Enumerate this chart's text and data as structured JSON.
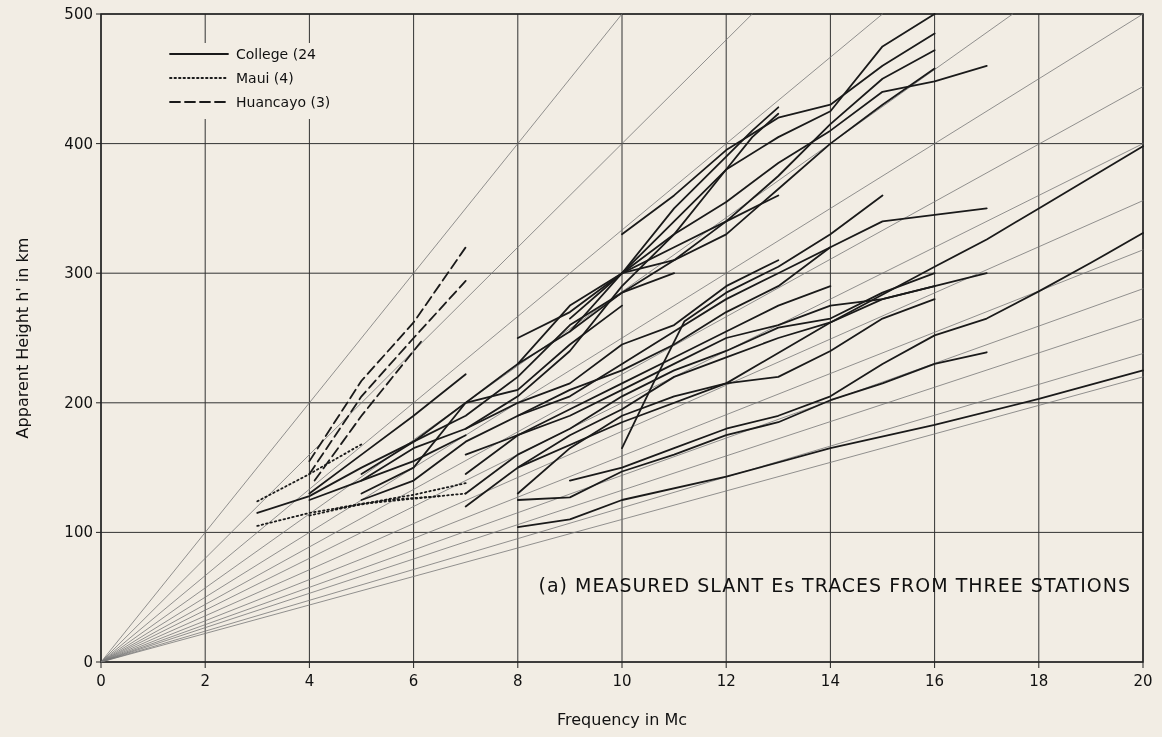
{
  "chart_data": {
    "type": "line",
    "xlabel": "Frequency in Mc",
    "ylabel": "Apparent Height h' in km",
    "annotations": [
      "(a)  MEASURED SLANT Es TRACES FROM THREE STATIONS"
    ],
    "xlim": [
      0,
      20
    ],
    "ylim": [
      0,
      500
    ],
    "xticks": [
      0,
      2,
      4,
      6,
      8,
      10,
      12,
      14,
      16,
      18,
      20
    ],
    "yticks": [
      0,
      100,
      200,
      300,
      400,
      500
    ],
    "grid": true,
    "legend": "top left",
    "series": [
      {
        "color": "#777777",
        "line_style": "solid",
        "x": [
          0,
          10
        ],
        "values": [
          0,
          500
        ]
      },
      {
        "color": "#777777",
        "line_style": "solid",
        "x": [
          0,
          12.5
        ],
        "values": [
          0,
          500
        ]
      },
      {
        "color": "#777777",
        "line_style": "solid",
        "x": [
          0,
          15
        ],
        "values": [
          0,
          500
        ]
      },
      {
        "color": "#777777",
        "line_style": "solid",
        "x": [
          0,
          17.5
        ],
        "values": [
          0,
          500
        ]
      },
      {
        "color": "#777777",
        "line_style": "solid",
        "x": [
          0,
          20
        ],
        "values": [
          0,
          500
        ]
      },
      {
        "color": "#777777",
        "line_style": "solid",
        "x": [
          0,
          20
        ],
        "values": [
          0,
          444
        ]
      },
      {
        "color": "#777777",
        "line_style": "solid",
        "x": [
          0,
          20
        ],
        "values": [
          0,
          400
        ]
      },
      {
        "color": "#777777",
        "line_style": "solid",
        "x": [
          0,
          20
        ],
        "values": [
          0,
          356
        ]
      },
      {
        "color": "#777777",
        "line_style": "solid",
        "x": [
          0,
          20
        ],
        "values": [
          0,
          318
        ]
      },
      {
        "color": "#777777",
        "line_style": "solid",
        "x": [
          0,
          20
        ],
        "values": [
          0,
          288
        ]
      },
      {
        "color": "#777777",
        "line_style": "solid",
        "x": [
          0,
          20
        ],
        "values": [
          0,
          265
        ]
      },
      {
        "color": "#777777",
        "line_style": "solid",
        "x": [
          0,
          20
        ],
        "values": [
          0,
          238
        ]
      },
      {
        "color": "#777777",
        "line_style": "solid",
        "x": [
          0,
          20
        ],
        "values": [
          0,
          220
        ]
      },
      {
        "name": "College (24",
        "color": "#1a1a1a",
        "line_style": "solid",
        "x": [
          8,
          9,
          10,
          12,
          14,
          16,
          18,
          20
        ],
        "values": [
          104,
          110,
          125,
          143,
          165,
          183,
          203,
          225
        ]
      },
      {
        "color": "#1a1a1a",
        "line_style": "solid",
        "x": [
          8,
          9,
          10,
          11,
          12,
          13,
          14,
          15,
          16,
          17
        ],
        "values": [
          125,
          127,
          147,
          160,
          175,
          185,
          202,
          215,
          230,
          239
        ]
      },
      {
        "color": "#1a1a1a",
        "line_style": "solid",
        "x": [
          9,
          10,
          11,
          12,
          13,
          14,
          15,
          16,
          17,
          18,
          19,
          20
        ],
        "values": [
          140,
          150,
          165,
          180,
          190,
          205,
          230,
          252,
          265,
          286,
          308,
          331
        ]
      },
      {
        "color": "#1a1a1a",
        "line_style": "solid",
        "x": [
          10,
          10.6,
          11.2,
          12,
          13,
          14,
          15
        ],
        "values": [
          165,
          215,
          263,
          285,
          305,
          330,
          360
        ]
      },
      {
        "color": "#1a1a1a",
        "line_style": "solid",
        "x": [
          8,
          10,
          12,
          14,
          16,
          17,
          18,
          20
        ],
        "values": [
          150,
          185,
          215,
          262,
          305,
          326,
          350,
          398
        ]
      },
      {
        "color": "#1a1a1a",
        "line_style": "solid",
        "x": [
          8,
          9,
          10,
          11,
          12,
          13,
          14,
          15,
          16
        ],
        "values": [
          130,
          165,
          190,
          205,
          215,
          220,
          240,
          265,
          280
        ]
      },
      {
        "color": "#1a1a1a",
        "line_style": "solid",
        "x": [
          7,
          8,
          9,
          10,
          11,
          12,
          13,
          14,
          15,
          16
        ],
        "values": [
          120,
          150,
          175,
          195,
          220,
          235,
          250,
          262,
          280,
          290
        ]
      },
      {
        "color": "#1a1a1a",
        "line_style": "solid",
        "x": [
          7,
          8,
          9,
          10,
          11,
          12,
          13,
          14,
          15,
          16
        ],
        "values": [
          130,
          160,
          180,
          205,
          225,
          240,
          258,
          265,
          285,
          300
        ]
      },
      {
        "color": "#1a1a1a",
        "line_style": "solid",
        "x": [
          7,
          8,
          9,
          10,
          11,
          12,
          13,
          14,
          15,
          16,
          17
        ],
        "values": [
          145,
          175,
          190,
          210,
          230,
          250,
          260,
          275,
          280,
          290,
          300
        ]
      },
      {
        "color": "#1a1a1a",
        "line_style": "solid",
        "x": [
          8,
          9,
          10,
          11,
          12,
          13,
          14,
          15,
          16,
          17
        ],
        "values": [
          190,
          205,
          230,
          255,
          280,
          300,
          320,
          340,
          345,
          350
        ]
      },
      {
        "color": "#1a1a1a",
        "line_style": "solid",
        "x": [
          9,
          10,
          11,
          12,
          13,
          14,
          15,
          16,
          17
        ],
        "values": [
          255,
          300,
          330,
          355,
          385,
          410,
          440,
          448,
          460
        ]
      },
      {
        "color": "#1a1a1a",
        "line_style": "solid",
        "x": [
          10,
          11,
          12,
          13,
          14,
          15,
          16
        ],
        "values": [
          300,
          340,
          380,
          405,
          425,
          475,
          500
        ]
      },
      {
        "color": "#1a1a1a",
        "line_style": "solid",
        "x": [
          10,
          11,
          12,
          13,
          14,
          15,
          16
        ],
        "values": [
          330,
          360,
          395,
          420,
          430,
          460,
          485
        ]
      },
      {
        "color": "#1a1a1a",
        "line_style": "solid",
        "x": [
          9,
          10,
          11,
          12,
          13,
          14,
          15,
          16
        ],
        "values": [
          265,
          300,
          320,
          340,
          375,
          415,
          450,
          472
        ]
      },
      {
        "color": "#1a1a1a",
        "line_style": "solid",
        "x": [
          8,
          9,
          10,
          11,
          12,
          13,
          14,
          15,
          16
        ],
        "values": [
          230,
          255,
          285,
          310,
          330,
          365,
          400,
          430,
          458
        ]
      },
      {
        "color": "#1a1a1a",
        "line_style": "solid",
        "x": [
          8,
          9,
          10,
          11,
          12,
          12.5,
          13
        ],
        "values": [
          250,
          270,
          300,
          350,
          390,
          410,
          428
        ]
      },
      {
        "color": "#1a1a1a",
        "line_style": "solid",
        "x": [
          7,
          8,
          9,
          10,
          11,
          12,
          12.5,
          13
        ],
        "values": [
          180,
          205,
          240,
          290,
          330,
          380,
          405,
          423
        ]
      },
      {
        "color": "#1a1a1a",
        "line_style": "solid",
        "x": [
          5,
          6,
          7,
          8,
          9,
          10,
          11,
          12,
          13
        ],
        "values": [
          130,
          150,
          200,
          230,
          275,
          300,
          310,
          340,
          360
        ]
      },
      {
        "color": "#1a1a1a",
        "line_style": "solid",
        "x": [
          3,
          4,
          5,
          6,
          7,
          8,
          9,
          10
        ],
        "values": [
          115,
          128,
          150,
          170,
          200,
          210,
          245,
          275
        ]
      },
      {
        "color": "#1a1a1a",
        "line_style": "solid",
        "x": [
          4,
          5,
          6,
          7
        ],
        "values": [
          130,
          160,
          190,
          222
        ]
      },
      {
        "color": "#1a1a1a",
        "line_style": "solid",
        "x": [
          5,
          6,
          7,
          8,
          9,
          10,
          11
        ],
        "values": [
          145,
          170,
          190,
          220,
          260,
          285,
          300
        ]
      },
      {
        "color": "#1a1a1a",
        "line_style": "solid",
        "x": [
          5,
          6,
          7,
          8,
          9,
          10,
          11,
          12,
          13
        ],
        "values": [
          140,
          165,
          180,
          200,
          215,
          245,
          260,
          290,
          310
        ]
      },
      {
        "color": "#1a1a1a",
        "line_style": "solid",
        "x": [
          5,
          6,
          7,
          8,
          9,
          10,
          11,
          12,
          13,
          14
        ],
        "values": [
          125,
          140,
          170,
          190,
          210,
          225,
          245,
          270,
          290,
          320
        ]
      },
      {
        "color": "#1a1a1a",
        "line_style": "solid",
        "x": [
          7,
          8,
          9,
          10,
          11,
          12,
          13,
          14
        ],
        "values": [
          160,
          175,
          195,
          215,
          235,
          255,
          275,
          290
        ]
      },
      {
        "color": "#1a1a1a",
        "line_style": "solid",
        "x": [
          4,
          5,
          6,
          7
        ],
        "values": [
          125,
          140,
          155,
          175
        ]
      },
      {
        "name": "Maui (4)",
        "color": "#1a1a1a",
        "line_style": "dotted",
        "x": [
          3,
          4,
          5
        ],
        "values": [
          124,
          145,
          168
        ]
      },
      {
        "color": "#1a1a1a",
        "line_style": "dotted",
        "x": [
          3,
          4,
          5,
          6,
          7
        ],
        "values": [
          105,
          115,
          122,
          129,
          138
        ]
      },
      {
        "color": "#1a1a1a",
        "line_style": "dotted",
        "x": [
          4,
          5,
          6,
          7
        ],
        "values": [
          113,
          122,
          126,
          130
        ]
      },
      {
        "color": "#1a1a1a",
        "line_style": "dotted",
        "x": [
          4.5,
          5.5,
          6.5
        ],
        "values": [
          118,
          125,
          128
        ]
      },
      {
        "name": "Huancayo (3)",
        "color": "#1a1a1a",
        "line_style": "dashed",
        "x": [
          4,
          5,
          6,
          7
        ],
        "values": [
          155,
          217,
          262,
          320
        ]
      },
      {
        "color": "#1a1a1a",
        "line_style": "dashed",
        "x": [
          4,
          5,
          6,
          7
        ],
        "values": [
          145,
          205,
          250,
          294
        ]
      },
      {
        "color": "#1a1a1a",
        "line_style": "dashed",
        "x": [
          4.1,
          5,
          6,
          6.2
        ],
        "values": [
          140,
          190,
          240,
          250
        ]
      }
    ]
  }
}
